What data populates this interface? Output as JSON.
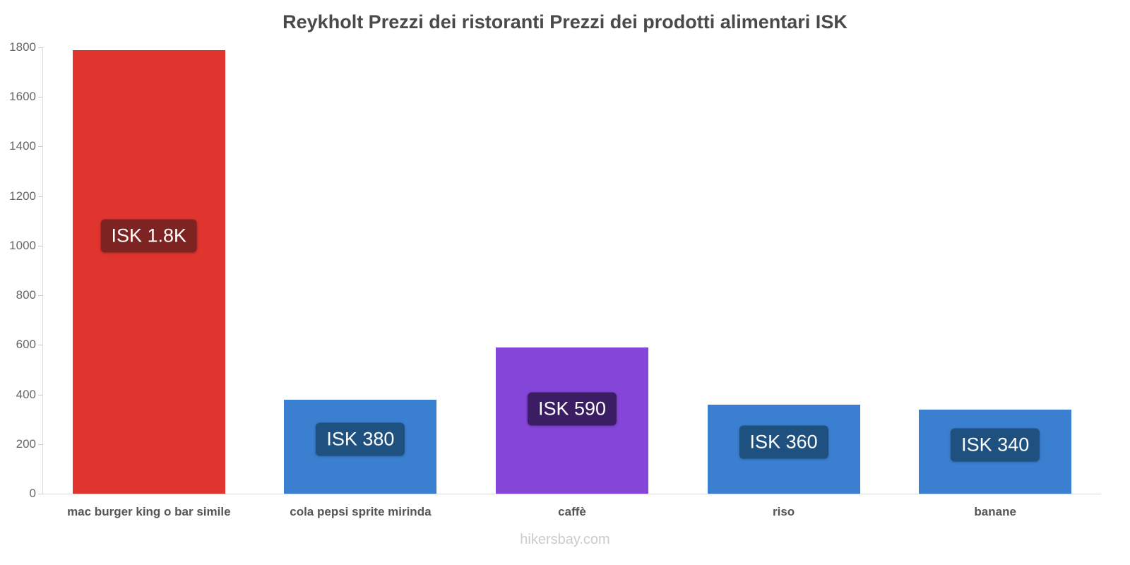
{
  "chart_data": {
    "type": "bar",
    "title": "Reykholt Prezzi dei ristoranti Prezzi dei prodotti alimentari ISK",
    "categories": [
      "mac burger king o bar simile",
      "cola pepsi sprite mirinda",
      "caffè",
      "riso",
      "banane"
    ],
    "values": [
      1790,
      380,
      590,
      360,
      340
    ],
    "value_labels": [
      "ISK 1.8K",
      "ISK 380",
      "ISK 590",
      "ISK 360",
      "ISK 340"
    ],
    "bar_colors": [
      "#e0342f",
      "#3b7fd1",
      "#8445d9",
      "#3b7fd1",
      "#3b7fd1"
    ],
    "label_bg_colors": [
      "#7d2321",
      "#1e5080",
      "#3a1d63",
      "#1e5080",
      "#1e5080"
    ],
    "currency": "ISK",
    "xlabel": "",
    "ylabel": "",
    "ylim": [
      0,
      1800
    ],
    "ytick_step": 200,
    "grid": false,
    "legend": "none",
    "footer": "hikersbay.com"
  }
}
